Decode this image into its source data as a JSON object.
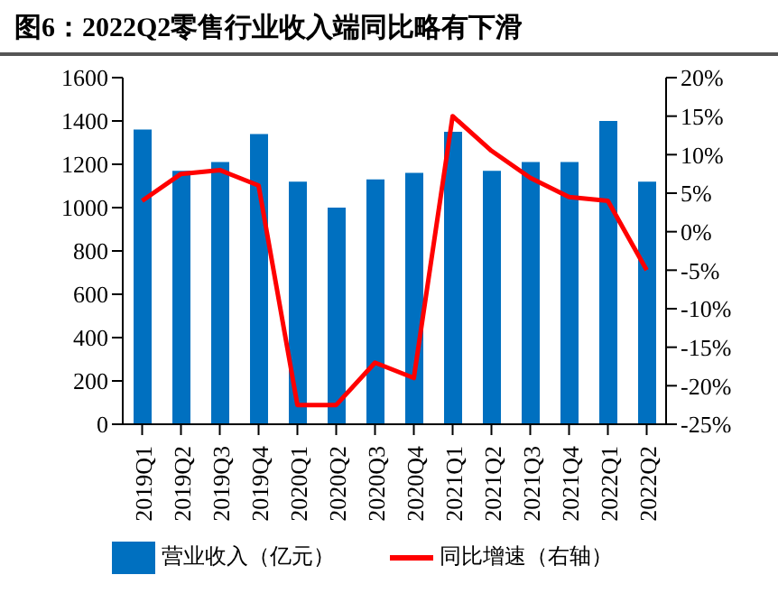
{
  "chart_data": {
    "type": "bar",
    "title": "图6：2022Q2零售行业收入端同比略有下滑",
    "categories": [
      "2019Q1",
      "2019Q2",
      "2019Q3",
      "2019Q4",
      "2020Q1",
      "2020Q2",
      "2020Q3",
      "2020Q4",
      "2021Q1",
      "2021Q2",
      "2021Q3",
      "2021Q4",
      "2022Q1",
      "2022Q2"
    ],
    "series": [
      {
        "name": "营业收入（亿元）",
        "color": "#0070c0",
        "values": [
          1360,
          1170,
          1210,
          1340,
          1120,
          1000,
          1130,
          1160,
          1350,
          1170,
          1210,
          1210,
          1400,
          1120
        ]
      },
      {
        "name": "同比增速（右轴）",
        "type": "line",
        "axis": "y2",
        "color": "#ff0000",
        "values": [
          4,
          7.5,
          8,
          6,
          -22.5,
          -22.5,
          -17,
          -19,
          15,
          10.5,
          7,
          4.5,
          4,
          -5
        ]
      }
    ],
    "ylim": [
      0,
      1600
    ],
    "yticks": [
      0,
      200,
      400,
      600,
      800,
      1000,
      1200,
      1400,
      1600
    ],
    "y2lim": [
      -25,
      20
    ],
    "y2ticks": [
      {
        "value": -25,
        "label": "-25%"
      },
      {
        "value": -20,
        "label": "-20%"
      },
      {
        "value": -15,
        "label": "-15%"
      },
      {
        "value": -10,
        "label": "-10%"
      },
      {
        "value": -5,
        "label": "-5%"
      },
      {
        "value": 0,
        "label": "0%"
      },
      {
        "value": 5,
        "label": "5%"
      },
      {
        "value": 10,
        "label": "10%"
      },
      {
        "value": 15,
        "label": "15%"
      },
      {
        "value": 20,
        "label": "20%"
      }
    ],
    "grid": false,
    "legend": "bottom",
    "marker": "none",
    "line_style": "solid"
  }
}
